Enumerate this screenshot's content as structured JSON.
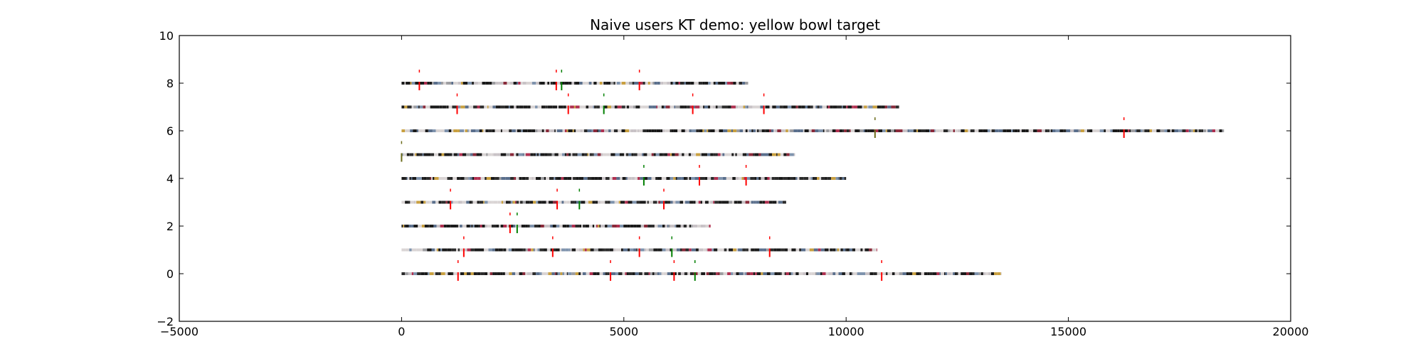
{
  "chart_data": {
    "type": "scatter",
    "title": "Naive users KT demo: yellow bowl target",
    "xlabel": "",
    "ylabel": "",
    "xlim": [
      -5000,
      20000
    ],
    "ylim": [
      -2,
      10
    ],
    "xticks": [
      -5000,
      0,
      5000,
      10000,
      15000,
      20000
    ],
    "yticks": [
      -2,
      0,
      2,
      4,
      6,
      8,
      10
    ],
    "xtick_labels": [
      "−5000",
      "0",
      "5000",
      "10000",
      "15000",
      "20000"
    ],
    "ytick_labels": [
      "−2",
      "0",
      "2",
      "4",
      "6",
      "8",
      "10"
    ],
    "grid": false,
    "legend": "none",
    "colors": {
      "correct_marker": "#008000",
      "incorrect_marker": "#ff0000",
      "frame": "#000000",
      "palette": [
        "#1a1a1a",
        "#2b2b2b",
        "#d9d4d4",
        "#c8c2c6",
        "#5a6f8c",
        "#7f93ad",
        "#c9a040",
        "#b03050",
        "#8a2a3a",
        "#9d9da0"
      ]
    },
    "series": [
      {
        "y": 0,
        "x_start": 0,
        "x_end": 13500,
        "markers": [
          {
            "x": 1270,
            "color": "red"
          },
          {
            "x": 4700,
            "color": "red"
          },
          {
            "x": 6130,
            "color": "red"
          },
          {
            "x": 6600,
            "color": "green"
          },
          {
            "x": 10800,
            "color": "red"
          }
        ]
      },
      {
        "y": 1,
        "x_start": 0,
        "x_end": 10700,
        "markers": [
          {
            "x": 1400,
            "color": "red"
          },
          {
            "x": 3400,
            "color": "red"
          },
          {
            "x": 5350,
            "color": "red"
          },
          {
            "x": 6080,
            "color": "green"
          },
          {
            "x": 8280,
            "color": "red"
          }
        ]
      },
      {
        "y": 2,
        "x_start": 0,
        "x_end": 6950,
        "markers": [
          {
            "x": 2440,
            "color": "red"
          },
          {
            "x": 2600,
            "color": "green"
          }
        ]
      },
      {
        "y": 3,
        "x_start": 0,
        "x_end": 8650,
        "markers": [
          {
            "x": 1100,
            "color": "red"
          },
          {
            "x": 3500,
            "color": "red"
          },
          {
            "x": 4000,
            "color": "green"
          },
          {
            "x": 5900,
            "color": "red"
          }
        ]
      },
      {
        "y": 4,
        "x_start": 0,
        "x_end": 10000,
        "markers": [
          {
            "x": 5450,
            "color": "green"
          },
          {
            "x": 6700,
            "color": "red"
          },
          {
            "x": 7750,
            "color": "red"
          }
        ]
      },
      {
        "y": 5,
        "x_start": 0,
        "x_end": 8850,
        "markers": [
          {
            "x": 0,
            "color": "olive"
          }
        ]
      },
      {
        "y": 6,
        "x_start": 0,
        "x_end": 18500,
        "markers": [
          {
            "x": 10650,
            "color": "olive"
          },
          {
            "x": 16250,
            "color": "red"
          }
        ]
      },
      {
        "y": 7,
        "x_start": 0,
        "x_end": 11200,
        "markers": [
          {
            "x": 1250,
            "color": "red"
          },
          {
            "x": 3750,
            "color": "red"
          },
          {
            "x": 4550,
            "color": "green"
          },
          {
            "x": 6550,
            "color": "red"
          },
          {
            "x": 8150,
            "color": "red"
          }
        ]
      },
      {
        "y": 8,
        "x_start": 0,
        "x_end": 7800,
        "markers": [
          {
            "x": 400,
            "color": "red"
          },
          {
            "x": 3480,
            "color": "red"
          },
          {
            "x": 3600,
            "color": "green"
          },
          {
            "x": 5350,
            "color": "red"
          }
        ]
      }
    ]
  }
}
